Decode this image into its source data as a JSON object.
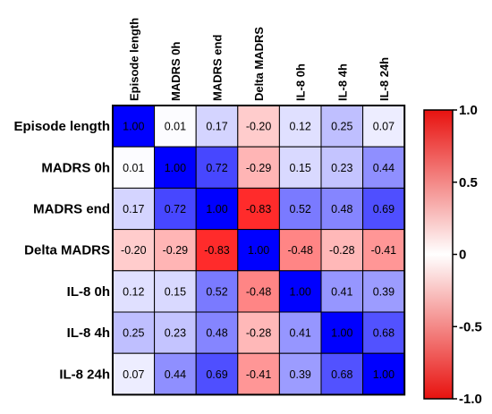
{
  "chart_data": {
    "type": "heatmap",
    "title": "",
    "rows": [
      "Episode length",
      "MADRS 0h",
      "MADRS end",
      "Delta MADRS",
      "IL-8 0h",
      "IL-8 4h",
      "IL-8 24h"
    ],
    "columns": [
      "Episode length",
      "MADRS 0h",
      "MADRS end",
      "Delta MADRS",
      "IL-8 0h",
      "IL-8 4h",
      "IL-8 24h"
    ],
    "values": [
      [
        1.0,
        0.01,
        0.17,
        -0.2,
        0.12,
        0.25,
        0.07
      ],
      [
        0.01,
        1.0,
        0.72,
        -0.29,
        0.15,
        0.23,
        0.44
      ],
      [
        0.17,
        0.72,
        1.0,
        -0.83,
        0.52,
        0.48,
        0.69
      ],
      [
        -0.2,
        -0.29,
        -0.83,
        1.0,
        -0.48,
        -0.28,
        -0.41
      ],
      [
        0.12,
        0.15,
        0.52,
        -0.48,
        1.0,
        0.41,
        0.39
      ],
      [
        0.25,
        0.23,
        0.48,
        -0.28,
        0.41,
        1.0,
        0.68
      ],
      [
        0.07,
        0.44,
        0.69,
        -0.41,
        0.39,
        0.68,
        1.0
      ]
    ],
    "cell_labels": [
      [
        "1.00",
        "0.01",
        "0.17",
        "-0.20",
        "0.12",
        "0.25",
        "0.07"
      ],
      [
        "0.01",
        "1.00",
        "0.72",
        "-0.29",
        "0.15",
        "0.23",
        "0.44"
      ],
      [
        "0.17",
        "0.72",
        "1.00",
        "-0.83",
        "0.52",
        "0.48",
        "0.69"
      ],
      [
        "-0.20",
        "-0.29",
        "-0.83",
        "1.00",
        "-0.48",
        "-0.28",
        "-0.41"
      ],
      [
        "0.12",
        "0.15",
        "0.52",
        "-0.48",
        "1.00",
        "0.41",
        "0.39"
      ],
      [
        "0.25",
        "0.23",
        "0.48",
        "-0.28",
        "0.41",
        "1.00",
        "0.68"
      ],
      [
        "0.07",
        "0.44",
        "0.69",
        "-0.41",
        "0.39",
        "0.68",
        "1.00"
      ]
    ],
    "colorbar": {
      "range": [
        -1.0,
        1.0
      ],
      "ticks": [
        "1.0",
        "0.5",
        "0",
        "-0.5",
        "-1.0"
      ],
      "top_color": "#e8120f",
      "mid_color": "#ffffff",
      "bottom_color": "#e8120f"
    },
    "colors": {
      "positive": "#0000ff",
      "negative": "#ff0000",
      "neutral": "#ffffff"
    }
  }
}
